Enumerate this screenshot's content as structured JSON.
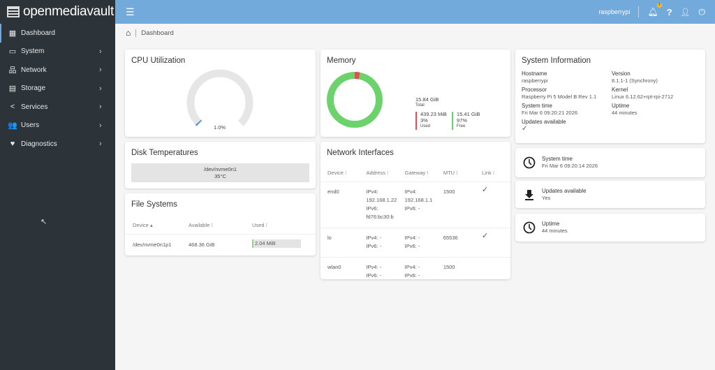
{
  "app": {
    "logo": "openmediavault"
  },
  "sidebar": {
    "items": [
      {
        "label": "Dashboard",
        "icon": "grid-icon",
        "glyph": "▦",
        "chevron": false
      },
      {
        "label": "System",
        "icon": "laptop-icon",
        "glyph": "▭",
        "chevron": true
      },
      {
        "label": "Network",
        "icon": "network-icon",
        "glyph": "品",
        "chevron": true
      },
      {
        "label": "Storage",
        "icon": "storage-icon",
        "glyph": "▤",
        "chevron": true
      },
      {
        "label": "Services",
        "icon": "share-icon",
        "glyph": "<",
        "chevron": true
      },
      {
        "label": "Users",
        "icon": "users-icon",
        "glyph": "👥",
        "chevron": true
      },
      {
        "label": "Diagnostics",
        "icon": "heart-pulse-icon",
        "glyph": "♥",
        "chevron": true
      }
    ]
  },
  "topbar": {
    "hostname": "raspberrypi",
    "notification_count": "3"
  },
  "breadcrumb": {
    "current": "Dashboard"
  },
  "cpu": {
    "title": "CPU Utilization",
    "value_label": "1.0%",
    "percent": 1.0
  },
  "disk_temps": {
    "title": "Disk Temperatures",
    "device": "/dev/nvme0n1",
    "temp": "35°C"
  },
  "filesystems": {
    "title": "File Systems",
    "headers": [
      "Device ▴",
      "Available ⁝",
      "Used ⁝"
    ],
    "rows": [
      {
        "device": "/dev/nvme0n1p1",
        "available": "468.36 GiB",
        "used": "2.04 MiB",
        "used_percent": 0.5
      }
    ]
  },
  "memory": {
    "title": "Memory",
    "total": "15.84 GiB",
    "total_label": "Total",
    "used": "439.23 MiB",
    "used_pct": "3%",
    "used_label": "Used",
    "free": "15.41 GiB",
    "free_pct": "97%",
    "free_label": "Free",
    "used_fraction": 3,
    "colors": {
      "used": "#e05050",
      "free": "#6cd36c"
    }
  },
  "network": {
    "title": "Network Interfaces",
    "headers": [
      "Device ⁝",
      "Address ⁝",
      "Gateway ⁝",
      "MTU ⁝",
      "Link ⁝"
    ],
    "rows": [
      {
        "device": "end0",
        "address": [
          "IPv4:",
          "192.168.1.22",
          "IPv6:",
          "fd76:bc30:b"
        ],
        "gateway": [
          "IPv4:",
          "192.168.1.1",
          "IPv6: -"
        ],
        "mtu": "1500",
        "link": "✓"
      },
      {
        "device": "lo",
        "address": [
          "IPv4: -",
          "IPv6: -"
        ],
        "gateway": [
          "IPv4: -",
          "IPv6: -"
        ],
        "mtu": "65536",
        "link": "✓"
      },
      {
        "device": "wlan0",
        "address": [
          "IPv4: -",
          "IPv6: -"
        ],
        "gateway": [
          "IPv4: -",
          "IPv6: -"
        ],
        "mtu": "1500",
        "link": ""
      }
    ]
  },
  "sysinfo": {
    "title": "System Information",
    "fields": [
      {
        "label": "Hostname",
        "value": "raspberrypi"
      },
      {
        "label": "Version",
        "value": "8.1.1-1 (Synchrony)"
      },
      {
        "label": "Processor",
        "value": "Raspberry Pi 5 Model B Rev 1.1"
      },
      {
        "label": "Kernel",
        "value": "Linux 6.12.62+rpt-rpi-2712"
      },
      {
        "label": "System time",
        "value": "Fri Mar 6 09:20:21 2026"
      },
      {
        "label": "Uptime",
        "value": "44 minutes"
      },
      {
        "label": "Updates available",
        "value": "✓"
      }
    ]
  },
  "widgets": [
    {
      "icon": "clock-icon",
      "label": "System time",
      "value": "Fri Mar 6 09:20:14 2026"
    },
    {
      "icon": "download-icon",
      "label": "Updates available",
      "value": "Yes"
    },
    {
      "icon": "clock-icon",
      "label": "Uptime",
      "value": "44 minutes"
    }
  ]
}
